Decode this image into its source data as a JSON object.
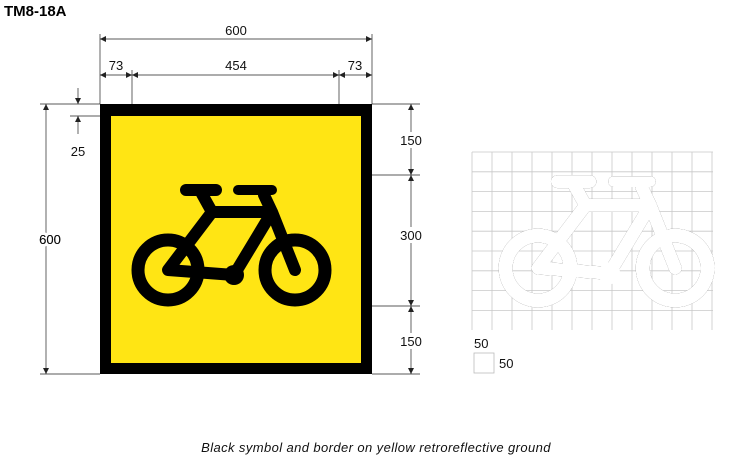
{
  "title": "TM8-18A",
  "colors": {
    "ground": "#ffe514",
    "symbol": "#000000",
    "border": "#000000"
  },
  "dimensions": {
    "overall_width": "600",
    "inner_width": "454",
    "left_margin": "73",
    "right_margin": "73",
    "overall_height": "600",
    "border_offset": "25",
    "upper_band": "150",
    "symbol_height": "300",
    "lower_band": "150"
  },
  "grid_legend": {
    "cell_height": "50",
    "cell_width": "50"
  },
  "caption": "Black symbol and border on yellow retroreflective ground",
  "symbol_icon": "bicycle-icon"
}
